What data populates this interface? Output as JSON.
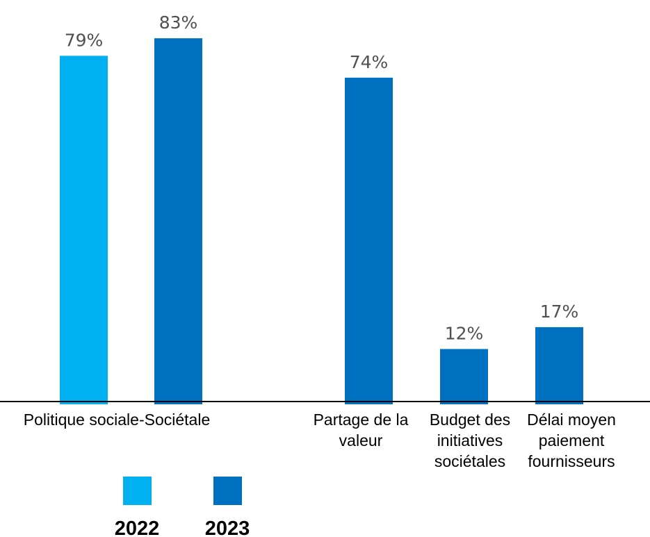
{
  "chart_data": {
    "type": "bar",
    "groups": [
      {
        "label": [
          "Politique sociale-Sociétale"
        ],
        "bars": [
          {
            "series": "2022",
            "value": 79,
            "label": "79%"
          },
          {
            "series": "2023",
            "value": 83,
            "label": "83%"
          }
        ]
      },
      {
        "label": [
          "Partage de la",
          "valeur"
        ],
        "bars": [
          {
            "series": "2023",
            "value": 74,
            "label": "74%"
          }
        ]
      },
      {
        "label": [
          "Budget des",
          "initiatives",
          "sociétales"
        ],
        "bars": [
          {
            "series": "2023",
            "value": 12,
            "label": "12%"
          }
        ]
      },
      {
        "label": [
          "Délai moyen",
          "paiement",
          "fournisseurs"
        ],
        "bars": [
          {
            "series": "2023",
            "value": 17,
            "label": "17%"
          }
        ]
      }
    ],
    "series": [
      {
        "name": "2022",
        "color": "#00B0F0"
      },
      {
        "name": "2023",
        "color": "#0070C0"
      }
    ],
    "ylim": [
      0,
      100
    ],
    "unit": "%",
    "grid": false,
    "legend_position": "bottom-left"
  }
}
